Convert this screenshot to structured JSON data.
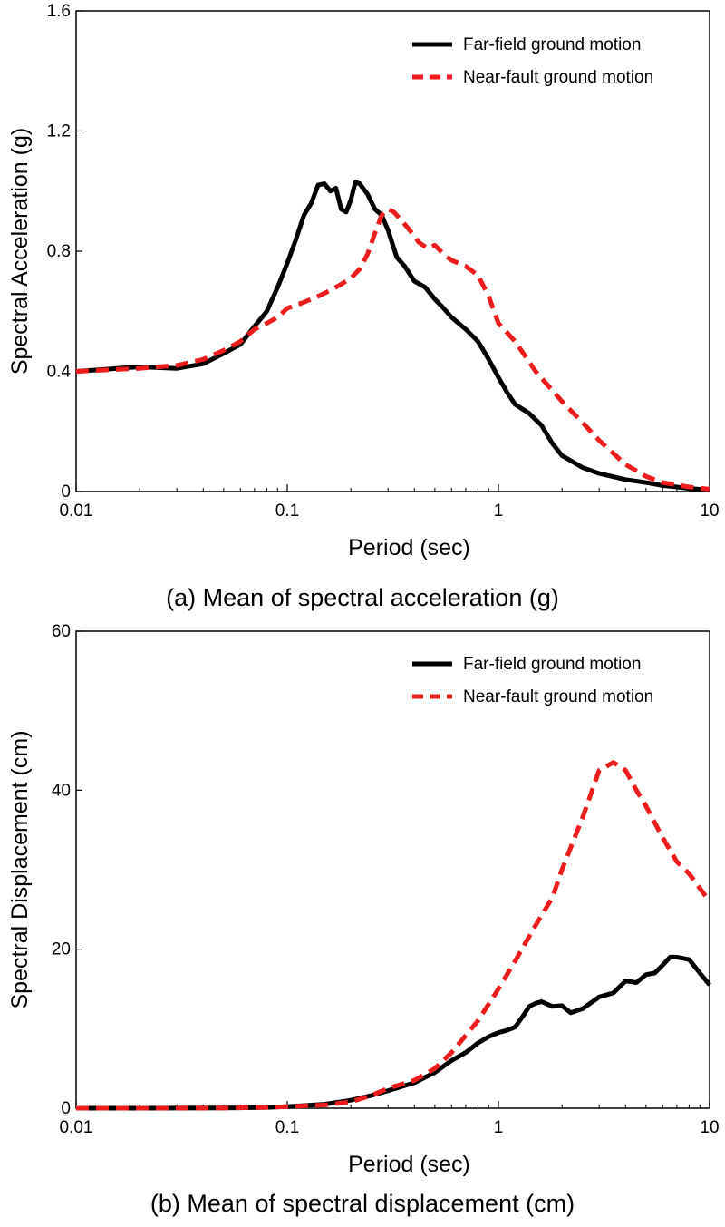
{
  "chart_data": [
    {
      "type": "line",
      "x_scale": "log",
      "xlim": [
        0.01,
        10
      ],
      "ylim": [
        0,
        1.6
      ],
      "xticks": [
        "0.01",
        "0.1",
        "1",
        "10"
      ],
      "yticks": [
        "0",
        "0.4",
        "0.8",
        "1.2",
        "1.6"
      ],
      "xlabel": "Period (sec)",
      "ylabel": "Spectral Acceleration (g)",
      "caption": "(a) Mean of spectral acceleration (g)",
      "legend": "top-right",
      "series": [
        {
          "name": "Far-field ground motion",
          "color": "#000000",
          "style": "solid",
          "x": [
            0.01,
            0.02,
            0.03,
            0.04,
            0.05,
            0.06,
            0.07,
            0.08,
            0.09,
            0.1,
            0.11,
            0.12,
            0.13,
            0.14,
            0.15,
            0.16,
            0.17,
            0.18,
            0.19,
            0.2,
            0.21,
            0.22,
            0.24,
            0.26,
            0.28,
            0.3,
            0.33,
            0.36,
            0.4,
            0.45,
            0.5,
            0.55,
            0.6,
            0.7,
            0.8,
            0.9,
            1.0,
            1.1,
            1.2,
            1.4,
            1.6,
            1.8,
            2.0,
            2.5,
            3.0,
            4.0,
            5.0,
            6.0,
            7.0,
            8.0,
            10.0
          ],
          "y": [
            0.4,
            0.415,
            0.41,
            0.425,
            0.46,
            0.49,
            0.55,
            0.6,
            0.68,
            0.76,
            0.84,
            0.92,
            0.96,
            1.02,
            1.025,
            1.0,
            1.01,
            0.94,
            0.93,
            0.97,
            1.03,
            1.025,
            0.99,
            0.94,
            0.92,
            0.87,
            0.78,
            0.75,
            0.7,
            0.68,
            0.64,
            0.61,
            0.58,
            0.54,
            0.5,
            0.44,
            0.38,
            0.33,
            0.29,
            0.26,
            0.22,
            0.16,
            0.12,
            0.08,
            0.06,
            0.04,
            0.03,
            0.02,
            0.015,
            0.01,
            0.005
          ]
        },
        {
          "name": "Near-fault ground motion",
          "color": "#ee1c1c",
          "style": "dashed",
          "x": [
            0.01,
            0.02,
            0.03,
            0.04,
            0.05,
            0.06,
            0.07,
            0.08,
            0.09,
            0.1,
            0.12,
            0.14,
            0.16,
            0.18,
            0.2,
            0.22,
            0.24,
            0.26,
            0.28,
            0.3,
            0.32,
            0.35,
            0.38,
            0.42,
            0.46,
            0.5,
            0.55,
            0.6,
            0.7,
            0.8,
            0.9,
            1.0,
            1.2,
            1.5,
            2.0,
            2.5,
            3.0,
            4.0,
            5.0,
            6.0,
            8.0,
            10.0
          ],
          "y": [
            0.4,
            0.41,
            0.42,
            0.44,
            0.47,
            0.5,
            0.54,
            0.56,
            0.58,
            0.61,
            0.63,
            0.65,
            0.67,
            0.69,
            0.71,
            0.74,
            0.79,
            0.86,
            0.92,
            0.94,
            0.93,
            0.9,
            0.87,
            0.83,
            0.81,
            0.82,
            0.79,
            0.77,
            0.75,
            0.72,
            0.65,
            0.56,
            0.5,
            0.4,
            0.3,
            0.23,
            0.17,
            0.09,
            0.05,
            0.03,
            0.015,
            0.008
          ]
        }
      ]
    },
    {
      "type": "line",
      "x_scale": "log",
      "xlim": [
        0.01,
        10
      ],
      "ylim": [
        0,
        60
      ],
      "xticks": [
        "0.01",
        "0.1",
        "1",
        "10"
      ],
      "yticks": [
        "0",
        "20",
        "40",
        "60"
      ],
      "xlabel": "Period (sec)",
      "ylabel": "Spectral Displacement (cm)",
      "caption": "(b) Mean of spectral displacement (cm)",
      "legend": "top-right",
      "series": [
        {
          "name": "Far-field ground motion",
          "color": "#000000",
          "style": "solid",
          "x": [
            0.01,
            0.02,
            0.05,
            0.08,
            0.1,
            0.15,
            0.2,
            0.25,
            0.3,
            0.4,
            0.5,
            0.6,
            0.7,
            0.8,
            0.9,
            1.0,
            1.1,
            1.2,
            1.3,
            1.4,
            1.5,
            1.6,
            1.8,
            2.0,
            2.2,
            2.5,
            3.0,
            3.5,
            4.0,
            4.5,
            5.0,
            5.5,
            6.0,
            6.5,
            7.0,
            8.0,
            9.0,
            10.0
          ],
          "y": [
            0,
            0,
            0.02,
            0.1,
            0.2,
            0.5,
            1.0,
            1.6,
            2.2,
            3.2,
            4.5,
            6.0,
            7.0,
            8.2,
            9.0,
            9.5,
            9.8,
            10.2,
            11.5,
            12.8,
            13.2,
            13.4,
            12.8,
            12.9,
            12.0,
            12.5,
            14.0,
            14.5,
            16.0,
            15.8,
            16.8,
            17.0,
            18.0,
            19.0,
            19.0,
            18.7,
            17.0,
            15.5
          ]
        },
        {
          "name": "Near-fault ground motion",
          "color": "#ee1c1c",
          "style": "dashed",
          "x": [
            0.01,
            0.02,
            0.05,
            0.08,
            0.1,
            0.15,
            0.2,
            0.25,
            0.3,
            0.4,
            0.5,
            0.6,
            0.8,
            1.0,
            1.2,
            1.5,
            1.8,
            2.0,
            2.5,
            3.0,
            3.5,
            4.0,
            4.5,
            5.0,
            6.0,
            7.0,
            8.0,
            10.0
          ],
          "y": [
            0,
            0,
            0.02,
            0.1,
            0.2,
            0.4,
            0.8,
            1.6,
            2.5,
            3.5,
            5.0,
            7.0,
            11.0,
            15.0,
            18.5,
            23.0,
            26.5,
            30.0,
            36.5,
            42.5,
            43.5,
            42.5,
            40.0,
            38.0,
            34.0,
            31.0,
            29.5,
            26.0
          ]
        }
      ]
    }
  ]
}
